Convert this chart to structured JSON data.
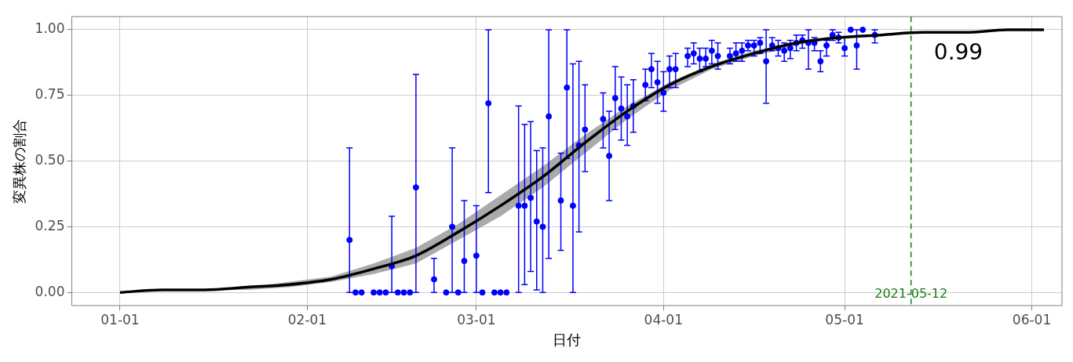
{
  "chart_data": {
    "type": "scatter",
    "xlabel": "日付",
    "ylabel": "変異株の割合",
    "xlim": [
      "2020-12-24",
      "2021-06-06"
    ],
    "ylim": [
      -0.05,
      1.05
    ],
    "xticks": [
      {
        "value": "2021-01-01",
        "label": "01-01"
      },
      {
        "value": "2021-02-01",
        "label": "02-01"
      },
      {
        "value": "2021-03-01",
        "label": "03-01"
      },
      {
        "value": "2021-04-01",
        "label": "04-01"
      },
      {
        "value": "2021-05-01",
        "label": "05-01"
      },
      {
        "value": "2021-06-01",
        "label": "06-01"
      }
    ],
    "yticks": [
      {
        "value": 0,
        "label": "0.00"
      },
      0.25,
      {
        "value": 0.5,
        "label": "0.50"
      },
      0.75,
      {
        "value": 1,
        "label": "1.00"
      }
    ],
    "grid": true,
    "legend": false,
    "series": [
      {
        "type": "line",
        "color": "#000000",
        "marker": "none",
        "x": [
          "2021-01-01",
          "2021-01-08",
          "2021-01-15",
          "2021-01-22",
          "2021-01-29",
          "2021-02-05",
          "2021-02-12",
          "2021-02-19",
          "2021-02-26",
          "2021-03-05",
          "2021-03-12",
          "2021-03-19",
          "2021-03-26",
          "2021-04-02",
          "2021-04-09",
          "2021-04-16",
          "2021-04-23",
          "2021-04-30",
          "2021-05-07",
          "2021-05-14",
          "2021-05-21",
          "2021-05-28",
          "2021-06-03"
        ],
        "values": [
          0.0,
          0.01,
          0.01,
          0.02,
          0.03,
          0.05,
          0.09,
          0.14,
          0.23,
          0.33,
          0.44,
          0.57,
          0.69,
          0.79,
          0.86,
          0.91,
          0.95,
          0.97,
          0.98,
          0.99,
          0.99,
          1.0,
          1.0
        ],
        "lower": [
          0,
          0.01,
          0.01,
          0.01,
          0.02,
          0.04,
          0.07,
          0.11,
          0.2,
          0.29,
          0.4,
          0.53,
          0.66,
          0.77,
          0.85,
          0.9,
          0.94,
          0.97,
          0.98,
          0.99,
          0.99,
          1,
          1
        ],
        "upper": [
          0,
          0.01,
          0.01,
          0.02,
          0.04,
          0.06,
          0.11,
          0.17,
          0.26,
          0.37,
          0.48,
          0.6,
          0.71,
          0.8,
          0.87,
          0.92,
          0.95,
          0.97,
          0.98,
          0.99,
          0.99,
          1,
          1
        ]
      },
      {
        "type": "scatter",
        "color": "#0000ff",
        "marker": "circle",
        "x": [
          "2021-02-08",
          "2021-02-09",
          "2021-02-10",
          "2021-02-12",
          "2021-02-13",
          "2021-02-14",
          "2021-02-15",
          "2021-02-16",
          "2021-02-17",
          "2021-02-18",
          "2021-02-19",
          "2021-02-22",
          "2021-02-24",
          "2021-02-25",
          "2021-02-26",
          "2021-02-27",
          "2021-03-01",
          "2021-03-02",
          "2021-03-03",
          "2021-03-04",
          "2021-03-05",
          "2021-03-06",
          "2021-03-08",
          "2021-03-09",
          "2021-03-10",
          "2021-03-11",
          "2021-03-12",
          "2021-03-13",
          "2021-03-15",
          "2021-03-16",
          "2021-03-17",
          "2021-03-18",
          "2021-03-19",
          "2021-03-22",
          "2021-03-23",
          "2021-03-24",
          "2021-03-25",
          "2021-03-26",
          "2021-03-27",
          "2021-03-29",
          "2021-03-30",
          "2021-03-31",
          "2021-04-01",
          "2021-04-02",
          "2021-04-03",
          "2021-04-05",
          "2021-04-06",
          "2021-04-07",
          "2021-04-08",
          "2021-04-09",
          "2021-04-10",
          "2021-04-12",
          "2021-04-13",
          "2021-04-14",
          "2021-04-15",
          "2021-04-16",
          "2021-04-17",
          "2021-04-18",
          "2021-04-19",
          "2021-04-20",
          "2021-04-21",
          "2021-04-22",
          "2021-04-23",
          "2021-04-24",
          "2021-04-25",
          "2021-04-26",
          "2021-04-27",
          "2021-04-28",
          "2021-04-29",
          "2021-04-30",
          "2021-05-01",
          "2021-05-02",
          "2021-05-03",
          "2021-05-04",
          "2021-05-06"
        ],
        "values": [
          0.2,
          0,
          0,
          0,
          0,
          0,
          0.1,
          0,
          0,
          0,
          0.4,
          0.05,
          0,
          0.25,
          0,
          0.12,
          0.14,
          0,
          0.72,
          0,
          0,
          0,
          0.33,
          0.33,
          0.36,
          0.27,
          0.25,
          0.67,
          0.35,
          0.78,
          0.33,
          0.56,
          0.62,
          0.66,
          0.52,
          0.74,
          0.7,
          0.67,
          0.71,
          0.79,
          0.85,
          0.8,
          0.76,
          0.85,
          0.85,
          0.9,
          0.91,
          0.89,
          0.89,
          0.92,
          0.9,
          0.9,
          0.91,
          0.92,
          0.94,
          0.94,
          0.95,
          0.88,
          0.94,
          0.93,
          0.92,
          0.93,
          0.95,
          0.96,
          0.95,
          0.95,
          0.88,
          0.94,
          0.98,
          0.97,
          0.93,
          1,
          0.94,
          1,
          0.98
        ],
        "errors": [
          [
            0,
            0.55
          ],
          null,
          null,
          null,
          null,
          null,
          [
            0,
            0.29
          ],
          null,
          null,
          null,
          [
            0,
            0.83
          ],
          [
            0,
            0.13
          ],
          null,
          [
            0,
            0.55
          ],
          null,
          [
            0,
            0.35
          ],
          [
            0,
            0.33
          ],
          null,
          [
            0.38,
            1
          ],
          null,
          null,
          null,
          [
            0,
            0.71
          ],
          [
            0.03,
            0.64
          ],
          [
            0.08,
            0.65
          ],
          [
            0.01,
            0.54
          ],
          [
            0,
            0.55
          ],
          [
            0.13,
            1
          ],
          [
            0.16,
            0.53
          ],
          [
            0.51,
            1
          ],
          [
            0,
            0.87
          ],
          [
            0.23,
            0.88
          ],
          [
            0.46,
            0.79
          ],
          [
            0.55,
            0.76
          ],
          [
            0.35,
            0.69
          ],
          [
            0.62,
            0.86
          ],
          [
            0.58,
            0.82
          ],
          [
            0.56,
            0.79
          ],
          [
            0.61,
            0.81
          ],
          [
            0.73,
            0.85
          ],
          [
            0.78,
            0.91
          ],
          [
            0.72,
            0.88
          ],
          [
            0.69,
            0.84
          ],
          [
            0.78,
            0.9
          ],
          [
            0.78,
            0.91
          ],
          [
            0.86,
            0.93
          ],
          [
            0.87,
            0.95
          ],
          [
            0.84,
            0.93
          ],
          [
            0.86,
            0.93
          ],
          [
            0.87,
            0.96
          ],
          [
            0.85,
            0.95
          ],
          [
            0.87,
            0.93
          ],
          [
            0.88,
            0.95
          ],
          [
            0.88,
            0.95
          ],
          [
            0.92,
            0.96
          ],
          [
            0.9,
            0.96
          ],
          [
            0.91,
            0.97
          ],
          [
            0.72,
            1
          ],
          [
            0.92,
            0.97
          ],
          [
            0.9,
            0.96
          ],
          [
            0.88,
            0.95
          ],
          [
            0.89,
            0.96
          ],
          [
            0.92,
            0.98
          ],
          [
            0.93,
            0.98
          ],
          [
            0.85,
            1
          ],
          [
            0.92,
            0.97
          ],
          [
            0.84,
            0.92
          ],
          [
            0.9,
            0.96
          ],
          [
            0.96,
            1
          ],
          [
            0.95,
            0.99
          ],
          [
            0.9,
            0.97
          ],
          null,
          [
            0.85,
            1
          ],
          null,
          [
            0.95,
            1
          ]
        ]
      }
    ],
    "ref_lines": [
      {
        "axis": "x",
        "value": "2021-05-12",
        "label": "2021-05-12",
        "color": "#1a7a1a",
        "line_style": "dashed"
      }
    ],
    "annotations": [
      "0.99"
    ]
  }
}
